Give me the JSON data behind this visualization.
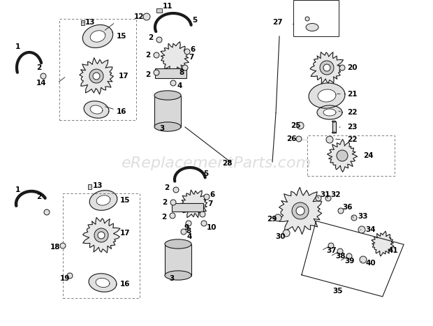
{
  "watermark": "eReplacementParts.com",
  "watermark_color": "#c8c8c8",
  "watermark_fontsize": 16,
  "bg_color": "#ffffff",
  "fig_width": 6.2,
  "fig_height": 4.67,
  "dpi": 100,
  "line_color": "#1a1a1a",
  "label_fontsize": 7.5,
  "label_color": "#000000"
}
